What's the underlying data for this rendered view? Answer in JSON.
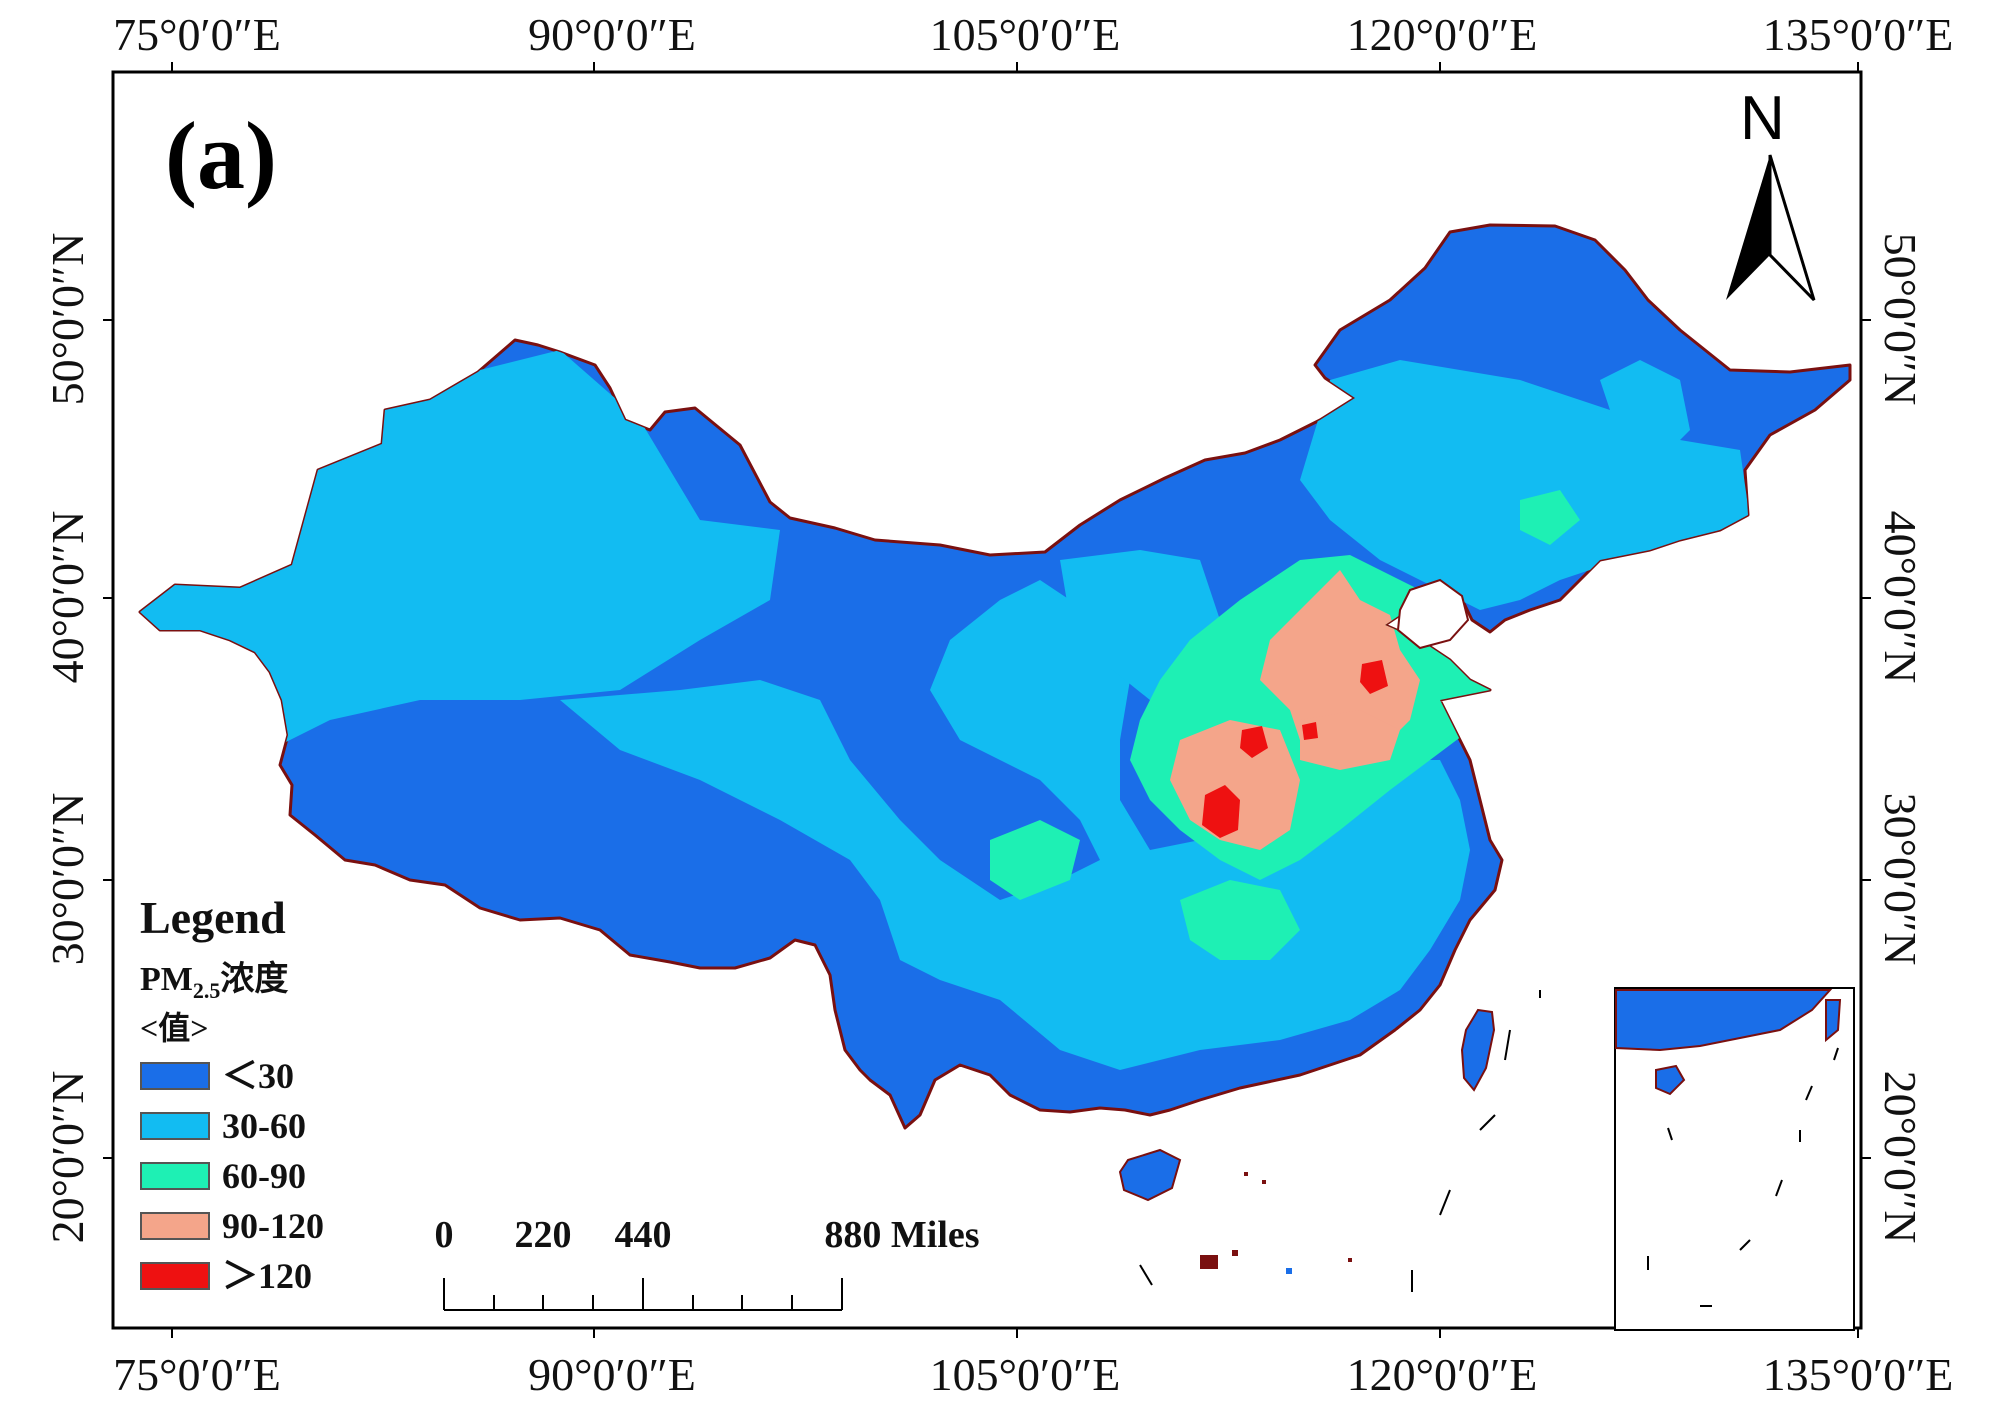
{
  "figure": {
    "panel_label": "(a)",
    "north_label": "N"
  },
  "axes": {
    "lon_ticks": [
      "75°0′0″E",
      "90°0′0″E",
      "105°0′0″E",
      "120°0′0″E",
      "135°0′0″E"
    ],
    "lat_ticks": [
      "20°0′0″N",
      "30°0′0″N",
      "40°0′0″N",
      "50°0′0″N"
    ]
  },
  "legend": {
    "title": "Legend",
    "subtitle_main": "PM",
    "subtitle_sub": "2.5",
    "subtitle_tail": "浓度",
    "value_label": "<值>",
    "classes": [
      {
        "label": "＜30",
        "color": "#1a6ee8"
      },
      {
        "label": "30-60",
        "color": "#12bcf2"
      },
      {
        "label": "60-90",
        "color": "#1ef0b4"
      },
      {
        "label": "90-120",
        "color": "#f4a58a"
      },
      {
        "label": "＞120",
        "color": "#ee1111"
      }
    ]
  },
  "scale_bar": {
    "labels": [
      "0",
      "220",
      "440",
      "880 Miles"
    ]
  },
  "colors": {
    "border": "#7a1010",
    "frame": "#000000"
  }
}
